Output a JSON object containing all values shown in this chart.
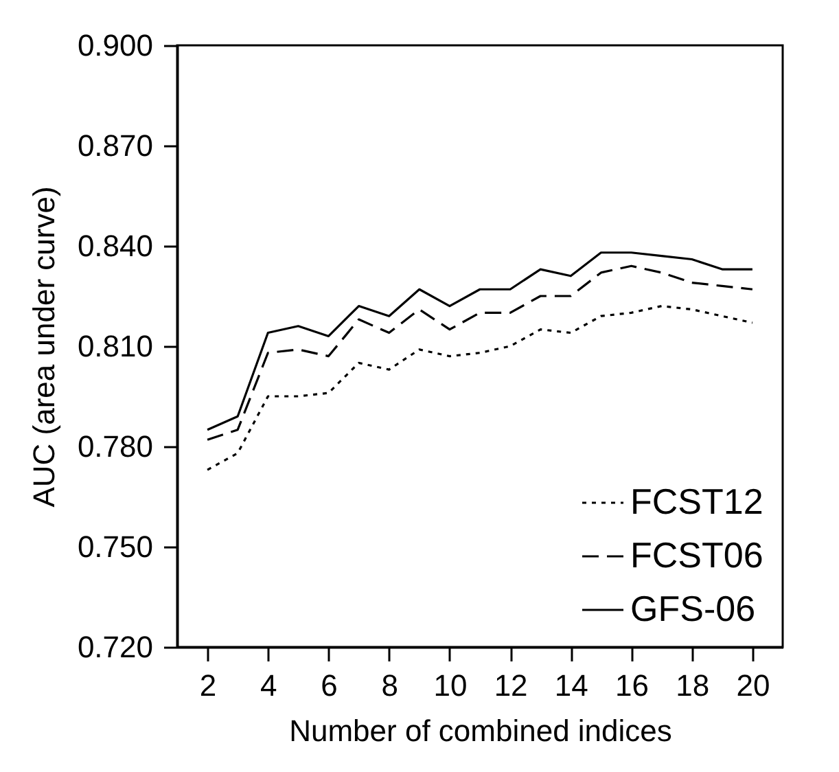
{
  "chart_data": {
    "type": "line",
    "xlabel": "Number of combined indices",
    "ylabel": "AUC (area under curve)",
    "x": [
      2,
      3,
      4,
      5,
      6,
      7,
      8,
      9,
      10,
      11,
      12,
      13,
      14,
      15,
      16,
      17,
      18,
      19,
      20
    ],
    "series": [
      {
        "name": "FCST12",
        "color": "#000000",
        "line_style": "dotted",
        "values": [
          0.773,
          0.778,
          0.795,
          0.795,
          0.796,
          0.805,
          0.803,
          0.809,
          0.807,
          0.808,
          0.81,
          0.815,
          0.814,
          0.819,
          0.82,
          0.822,
          0.821,
          0.819,
          0.817
        ]
      },
      {
        "name": "FCST06",
        "color": "#000000",
        "line_style": "dashed",
        "values": [
          0.782,
          0.785,
          0.808,
          0.809,
          0.807,
          0.818,
          0.814,
          0.821,
          0.815,
          0.82,
          0.82,
          0.825,
          0.825,
          0.832,
          0.834,
          0.832,
          0.829,
          0.828,
          0.827
        ]
      },
      {
        "name": "GFS-06",
        "color": "#000000",
        "line_style": "solid",
        "values": [
          0.785,
          0.789,
          0.814,
          0.816,
          0.813,
          0.822,
          0.819,
          0.827,
          0.822,
          0.827,
          0.827,
          0.833,
          0.831,
          0.838,
          0.838,
          0.837,
          0.836,
          0.833,
          0.833
        ]
      }
    ],
    "xlim": [
      1,
      21
    ],
    "xticks": [
      2,
      4,
      6,
      8,
      10,
      12,
      14,
      16,
      18,
      20
    ],
    "ylim": [
      0.72,
      0.9
    ],
    "yticks": [
      {
        "value": 0.72,
        "label": "0.720"
      },
      {
        "value": 0.75,
        "label": "0.750"
      },
      {
        "value": 0.78,
        "label": "0.780"
      },
      {
        "value": 0.81,
        "label": "0.810"
      },
      {
        "value": 0.84,
        "label": "0.840"
      },
      {
        "value": 0.87,
        "label": "0.870"
      },
      {
        "value": 0.9,
        "label": "0.900"
      }
    ],
    "legend": "bottom right",
    "grid": false,
    "marker": "none"
  }
}
